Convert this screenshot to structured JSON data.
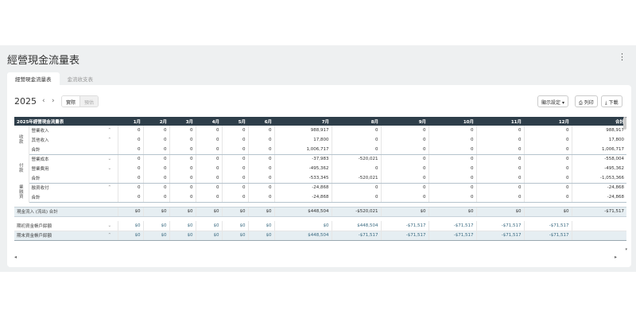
{
  "page": {
    "title": "經營現金流量表",
    "more": "⋮"
  },
  "tabs": [
    {
      "label": "經營現金流量表"
    },
    {
      "label": "金流收支表"
    }
  ],
  "toolbar": {
    "year": "2025",
    "prev": "‹",
    "next": "›",
    "mode_options": [
      "實際",
      "預估"
    ],
    "display_settings": "顯示設定",
    "print": "列印",
    "download": "下載"
  },
  "table": {
    "header": [
      "2025年經營現金流量表",
      "1月",
      "2月",
      "3月",
      "4月",
      "5月",
      "6月",
      "7月",
      "8月",
      "9月",
      "10月",
      "11月",
      "12月",
      "合計"
    ],
    "sections": [
      {
        "group": "收款",
        "rows": [
          {
            "label": "營業收入",
            "arrow": "⌃",
            "values": [
              "0",
              "0",
              "0",
              "0",
              "0",
              "0",
              "988,917",
              "0",
              "0",
              "0",
              "0",
              "0",
              "988,917"
            ]
          },
          {
            "label": "其他收入",
            "arrow": "⌃",
            "values": [
              "0",
              "0",
              "0",
              "0",
              "0",
              "0",
              "17,800",
              "0",
              "0",
              "0",
              "0",
              "0",
              "17,800"
            ]
          }
        ],
        "subtotal": {
          "label": "合計",
          "values": [
            "0",
            "0",
            "0",
            "0",
            "0",
            "0",
            "1,006,717",
            "0",
            "0",
            "0",
            "0",
            "0",
            "1,006,717"
          ]
        }
      },
      {
        "group": "付款",
        "rows": [
          {
            "label": "營業成本",
            "arrow": "⌄",
            "values": [
              "0",
              "0",
              "0",
              "0",
              "0",
              "0",
              "-37,983",
              "-520,021",
              "0",
              "0",
              "0",
              "0",
              "-558,004"
            ]
          },
          {
            "label": "營業費用",
            "arrow": "⌄",
            "values": [
              "0",
              "0",
              "0",
              "0",
              "0",
              "0",
              "-495,362",
              "0",
              "0",
              "0",
              "0",
              "0",
              "-495,362"
            ]
          }
        ],
        "subtotal": {
          "label": "合計",
          "values": [
            "0",
            "0",
            "0",
            "0",
            "0",
            "0",
            "-533,345",
            "-520,021",
            "0",
            "0",
            "0",
            "0",
            "-1,053,366"
          ]
        }
      },
      {
        "group": "業融資",
        "rows": [
          {
            "label": "融資收付",
            "arrow": "⌃",
            "values": [
              "0",
              "0",
              "0",
              "0",
              "0",
              "0",
              "-24,868",
              "0",
              "0",
              "0",
              "0",
              "0",
              "-24,868"
            ]
          }
        ],
        "subtotal": {
          "label": "合計",
          "values": [
            "0",
            "0",
            "0",
            "0",
            "0",
            "0",
            "-24,868",
            "0",
            "0",
            "0",
            "0",
            "0",
            "-24,868"
          ]
        }
      }
    ],
    "net": {
      "label": "現金流入 (流出) 合計",
      "values": [
        "$0",
        "$0",
        "$0",
        "$0",
        "$0",
        "$0",
        "$448,504",
        "-$520,021",
        "$0",
        "$0",
        "$0",
        "$0",
        "-$71,517"
      ]
    },
    "opening": {
      "label": "期初資金帳戶餘額",
      "arrow": "⌄",
      "values": [
        "$0",
        "$0",
        "$0",
        "$0",
        "$0",
        "$0",
        "$0",
        "$448,504",
        "-$71,517",
        "-$71,517",
        "-$71,517",
        "-$71,517",
        ""
      ]
    },
    "closing": {
      "label": "期末資金帳戶餘額",
      "arrow": "⌃",
      "values": [
        "$0",
        "$0",
        "$0",
        "$0",
        "$0",
        "$0",
        "$448,504",
        "-$71,517",
        "-$71,517",
        "-$71,517",
        "-$71,517",
        "-$71,517",
        ""
      ]
    }
  }
}
